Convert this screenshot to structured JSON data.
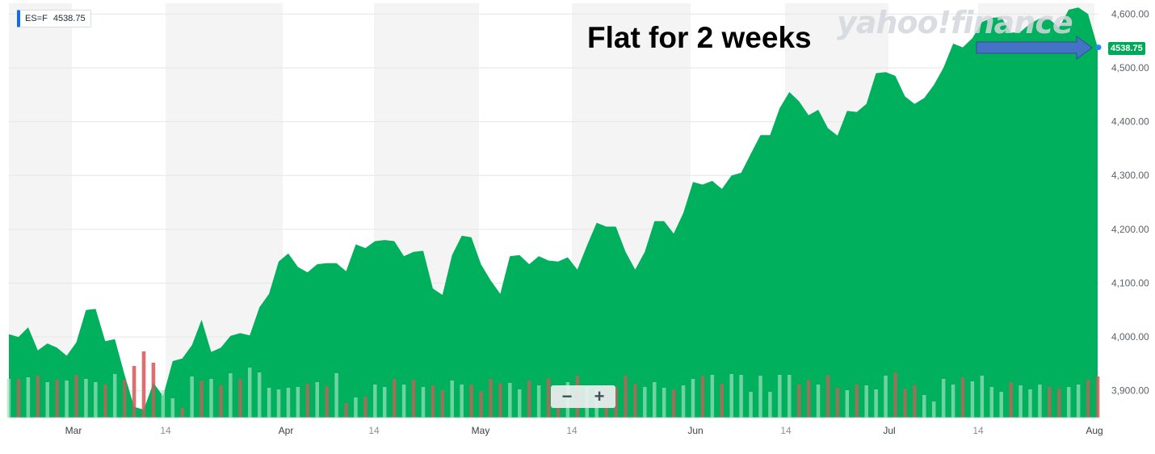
{
  "ticker": {
    "symbol": "ES=F",
    "price": "4538.75"
  },
  "annotation": "Flat for 2 weeks",
  "watermark": "yahoo!finance",
  "current_price_label": "4538.75",
  "zoom": {
    "minus": "−",
    "plus": "+"
  },
  "colors": {
    "area": "#00b05d",
    "vol_up": "#b7e8c9",
    "vol_down": "#e8a3a3",
    "arrow": "#4472c4",
    "grid": "#e6e6e6",
    "band": "#f4f4f4",
    "marker": "#1d8cff"
  },
  "chart_data": {
    "type": "area",
    "title": "",
    "xlabel": "",
    "ylabel": "",
    "ylim": [
      3850,
      4620
    ],
    "y_ticks": [
      "3,900.00",
      "4,000.00",
      "4,100.00",
      "4,200.00",
      "4,300.00",
      "4,400.00",
      "4,500.00",
      "4,600.00"
    ],
    "x_ticks": [
      "Mar",
      "14",
      "Apr",
      "14",
      "May",
      "14",
      "Jun",
      "14",
      "Jul",
      "14",
      "Aug"
    ],
    "series": [
      {
        "values": [
          4005,
          4000,
          4018,
          3975,
          3988,
          3980,
          3965,
          3990,
          4050,
          4052,
          3992,
          3996,
          3930,
          3870,
          3865,
          3915,
          3890,
          3955,
          3960,
          3985,
          4032,
          3972,
          3980,
          4002,
          4007,
          4003,
          4055,
          4080,
          4140,
          4155,
          4130,
          4120,
          4135,
          4137,
          4137,
          4122,
          4172,
          4165,
          4178,
          4180,
          4178,
          4150,
          4158,
          4160,
          4090,
          4078,
          4152,
          4188,
          4185,
          4135,
          4105,
          4080,
          4150,
          4152,
          4135,
          4150,
          4142,
          4140,
          4148,
          4125,
          4170,
          4212,
          4205,
          4205,
          4158,
          4125,
          4158,
          4215,
          4215,
          4192,
          4230,
          4288,
          4283,
          4290,
          4275,
          4300,
          4305,
          4340,
          4375,
          4375,
          4425,
          4455,
          4438,
          4412,
          4422,
          4388,
          4374,
          4420,
          4418,
          4433,
          4490,
          4492,
          4485,
          4447,
          4433,
          4444,
          4468,
          4500,
          4545,
          4538,
          4555,
          4585,
          4593,
          4594,
          4565,
          4567,
          4582,
          4592,
          4590,
          4575,
          4608,
          4612,
          4600,
          4538
        ],
        "volume": [
          48,
          48,
          50,
          52,
          44,
          47,
          46,
          53,
          48,
          44,
          41,
          54,
          47,
          64,
          82,
          68,
          34,
          24,
          12,
          51,
          46,
          48,
          40,
          55,
          48,
          62,
          56,
          37,
          35,
          37,
          38,
          42,
          44,
          39,
          55,
          18,
          25,
          26,
          41,
          38,
          48,
          41,
          47,
          38,
          40,
          34,
          46,
          41,
          41,
          33,
          48,
          43,
          43,
          35,
          46,
          40,
          49,
          34,
          44,
          52,
          38,
          35,
          40,
          38,
          52,
          42,
          38,
          44,
          37,
          35,
          40,
          48,
          52,
          53,
          42,
          54,
          53,
          32,
          52,
          32,
          53,
          53,
          41,
          47,
          41,
          53,
          37,
          34,
          41,
          40,
          35,
          52,
          56,
          36,
          40,
          28,
          20,
          48,
          41,
          50,
          45,
          52,
          38,
          32,
          44,
          40,
          35,
          41,
          38,
          36,
          38,
          41,
          47,
          51
        ],
        "volume_up": [
          true,
          false,
          true,
          false,
          true,
          false,
          true,
          false,
          true,
          true,
          false,
          true,
          false,
          false,
          false,
          false,
          true,
          true,
          false,
          true,
          false,
          true,
          false,
          true,
          false,
          true,
          true,
          true,
          true,
          true,
          true,
          false,
          true,
          false,
          true,
          false,
          true,
          false,
          true,
          true,
          false,
          true,
          false,
          true,
          false,
          false,
          true,
          true,
          false,
          false,
          false,
          false,
          true,
          true,
          false,
          true,
          false,
          false,
          true,
          false,
          true,
          true,
          false,
          false,
          false,
          false,
          true,
          true,
          true,
          false,
          true,
          true,
          false,
          true,
          false,
          true,
          true,
          true,
          true,
          true,
          true,
          true,
          false,
          false,
          true,
          false,
          false,
          true,
          false,
          true,
          true,
          true,
          false,
          false,
          false,
          true,
          true,
          true,
          true,
          false,
          true,
          true,
          true,
          true,
          false,
          true,
          true,
          true,
          false,
          false,
          true,
          true,
          false,
          false
        ]
      }
    ]
  }
}
